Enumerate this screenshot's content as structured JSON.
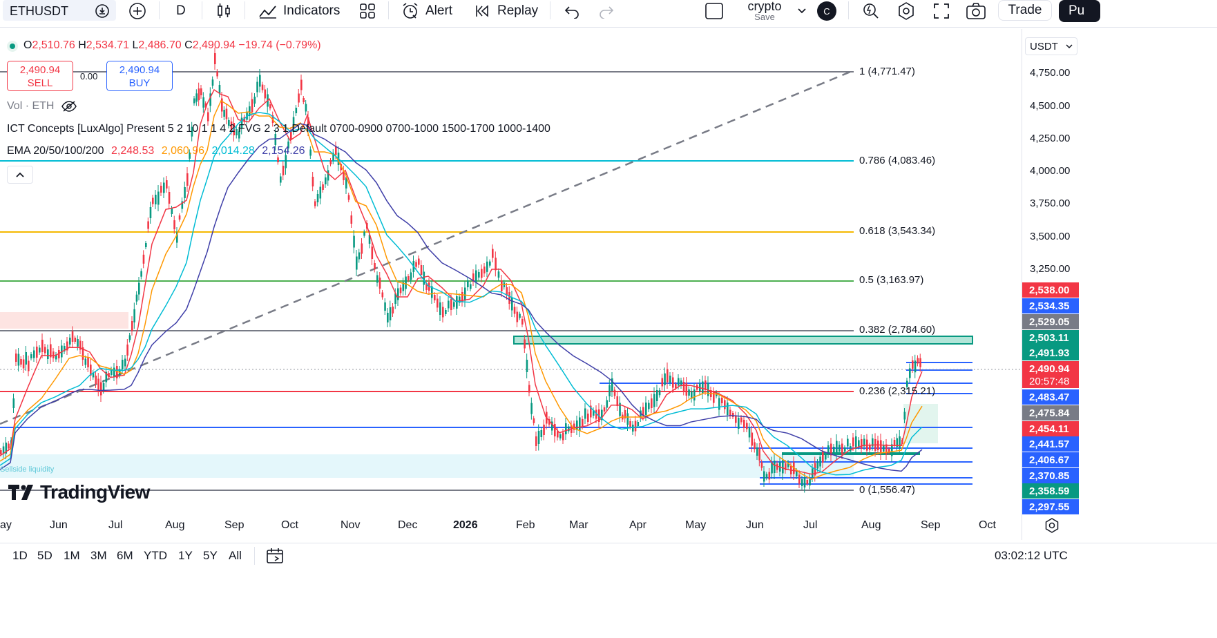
{
  "toolbar": {
    "symbol": "ETHUSDT",
    "interval": "D",
    "indicators_label": "Indicators",
    "alert_label": "Alert",
    "replay_label": "Replay",
    "layout_name": "crypto",
    "layout_save": "Save",
    "avatar_letter": "C",
    "trade_label": "Trade",
    "publish_label": "Pu"
  },
  "legend": {
    "o_label": "O",
    "o_value": "2,510.76",
    "h_label": "H",
    "h_value": "2,534.71",
    "l_label": "L",
    "l_value": "2,486.70",
    "c_label": "C",
    "c_value": "2,490.94",
    "change": "−19.74 (−0.79%)",
    "sell_price": "2,490.94",
    "sell_label": "SELL",
    "spread": "0.00",
    "buy_price": "2,490.94",
    "buy_label": "BUY",
    "vol": "Vol · ETH",
    "ict": "ICT Concepts [LuxAlgo] Present 5 2 10 1 1 4 2 FVG 2 3 1 Default 0700-0900 0700-1000 1500-1700 1000-1400",
    "ema_name": "EMA 20/50/100/200",
    "ema20": "2,248.53",
    "ema50": "2,060.96",
    "ema100": "2,014.28",
    "ema200": "2,154.26"
  },
  "fib_levels": [
    {
      "label": "1 (4,771.47)",
      "color": "#787b86"
    },
    {
      "label": "0.786 (4,083.46)",
      "color": "#00bcd4"
    },
    {
      "label": "0.618 (3,543.34)",
      "color": "#f5b800"
    },
    {
      "label": "0.5 (3,163.97)",
      "color": "#4caf50"
    },
    {
      "label": "0.382 (2,784.60)",
      "color": "#787b86"
    },
    {
      "label": "0.236 (2,315.21)",
      "color": "#f23645"
    },
    {
      "label": "0 (1,556.47)",
      "color": "#787b86"
    }
  ],
  "annotations": {
    "sellside": "Sellside liquidity",
    "logo": "TradingView"
  },
  "price_scale": {
    "currency": "USDT",
    "ticks": [
      "4,750.00",
      "4,500.00",
      "4,250.00",
      "4,000.00",
      "3,750.00",
      "3,500.00",
      "3,250.00"
    ],
    "tags": [
      {
        "value": "2,538.00",
        "color": "#f23645"
      },
      {
        "value": "2,534.35",
        "color": "#2962ff"
      },
      {
        "value": "2,529.05",
        "color": "#787b86"
      },
      {
        "value": "2,503.11",
        "color": "#089981"
      },
      {
        "value": "2,491.93",
        "color": "#089981"
      },
      {
        "value": "2,490.94",
        "color": "#f23645"
      },
      {
        "value": "20:57:48",
        "color": "#f23645"
      },
      {
        "value": "2,483.47",
        "color": "#2962ff"
      },
      {
        "value": "2,475.84",
        "color": "#787b86"
      },
      {
        "value": "2,454.11",
        "color": "#f23645"
      },
      {
        "value": "2,441.57",
        "color": "#2962ff"
      },
      {
        "value": "2,406.67",
        "color": "#2962ff"
      },
      {
        "value": "2,370.85",
        "color": "#2962ff"
      },
      {
        "value": "2,358.59",
        "color": "#089981"
      },
      {
        "value": "2,297.55",
        "color": "#2962ff"
      }
    ]
  },
  "time_axis": [
    "ay",
    "Jun",
    "Jul",
    "Aug",
    "Sep",
    "Oct",
    "Nov",
    "Dec",
    "2026",
    "Feb",
    "Mar",
    "Apr",
    "May",
    "Jun",
    "Jul",
    "Aug",
    "Sep",
    "Oct"
  ],
  "ranges": [
    "1D",
    "5D",
    "1M",
    "3M",
    "6M",
    "YTD",
    "1Y",
    "5Y",
    "All"
  ],
  "clock": "03:02:12 UTC",
  "colors": {
    "up": "#089981",
    "down": "#f23645",
    "ema20": "#f23645",
    "ema50": "#ff9800",
    "ema100": "#00bcd4",
    "ema200": "#3f3fa8"
  }
}
